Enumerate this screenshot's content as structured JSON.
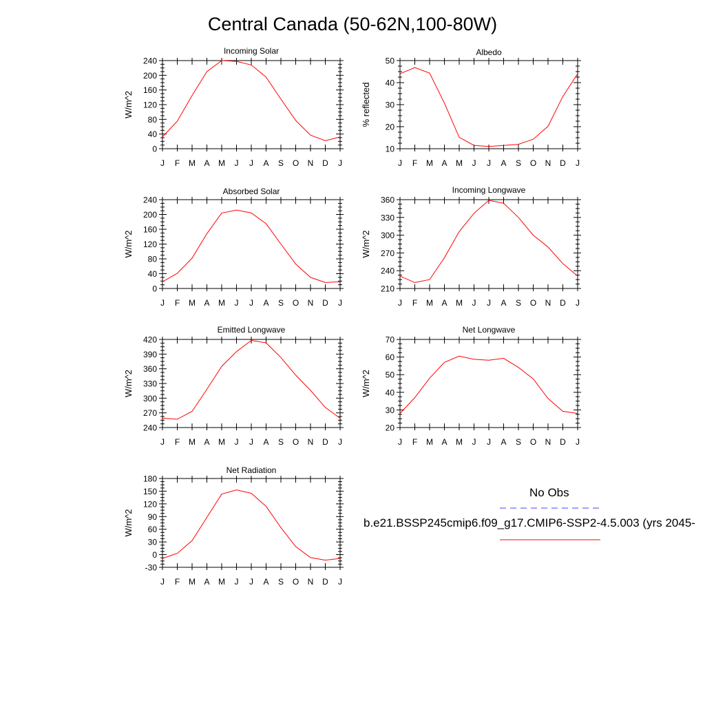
{
  "page": {
    "title": "Central Canada (50-62N,100-80W)"
  },
  "legend": {
    "obs_label": "No Obs",
    "case_label": "b.e21.BSSP245cmip6.f09_g17.CMIP6-SSP2-4.5.003 (yrs 2045-",
    "obs_color": "#4040ff",
    "case_color": "#ff0000"
  },
  "colors": {
    "line": "#ff0000",
    "axis": "#000000"
  },
  "chart_data": [
    {
      "type": "line",
      "title": "Incoming Solar",
      "ylabel": "W/m^2",
      "categories": [
        "J",
        "F",
        "M",
        "A",
        "M",
        "J",
        "J",
        "A",
        "S",
        "O",
        "N",
        "D",
        "J"
      ],
      "ylim": [
        0,
        240
      ],
      "yticks": [
        0,
        40,
        80,
        120,
        160,
        200,
        240
      ],
      "values": [
        32,
        75,
        145,
        210,
        240,
        238,
        228,
        195,
        135,
        77,
        37,
        22,
        32
      ]
    },
    {
      "type": "line",
      "title": "Albedo",
      "ylabel": "% reflected",
      "categories": [
        "J",
        "F",
        "M",
        "A",
        "M",
        "J",
        "J",
        "A",
        "S",
        "O",
        "N",
        "D",
        "J"
      ],
      "ylim": [
        10,
        50
      ],
      "yticks": [
        10,
        20,
        30,
        40,
        50
      ],
      "values": [
        44,
        46.8,
        44.3,
        30.7,
        15.2,
        11.5,
        11.0,
        11.5,
        12.0,
        14.3,
        20.2,
        33.7,
        44
      ]
    },
    {
      "type": "line",
      "title": "Absorbed Solar",
      "ylabel": "W/m^2",
      "categories": [
        "J",
        "F",
        "M",
        "A",
        "M",
        "J",
        "J",
        "A",
        "S",
        "O",
        "N",
        "D",
        "J"
      ],
      "ylim": [
        0,
        240
      ],
      "yticks": [
        0,
        40,
        80,
        120,
        160,
        200,
        240
      ],
      "values": [
        18,
        41,
        82,
        148,
        204,
        212,
        204,
        175,
        120,
        66,
        30,
        16,
        18
      ]
    },
    {
      "type": "line",
      "title": "Incoming Longwave",
      "ylabel": "W/m^2",
      "categories": [
        "J",
        "F",
        "M",
        "A",
        "M",
        "J",
        "J",
        "A",
        "S",
        "O",
        "N",
        "D",
        "J"
      ],
      "ylim": [
        210,
        360
      ],
      "yticks": [
        210,
        240,
        270,
        300,
        330,
        360
      ],
      "values": [
        231,
        220,
        225,
        262,
        306,
        337,
        359,
        354,
        330,
        300,
        280,
        252,
        231
      ]
    },
    {
      "type": "line",
      "title": "Emitted Longwave",
      "ylabel": "W/m^2",
      "categories": [
        "J",
        "F",
        "M",
        "A",
        "M",
        "J",
        "J",
        "A",
        "S",
        "O",
        "N",
        "D",
        "J"
      ],
      "ylim": [
        240,
        420
      ],
      "yticks": [
        240,
        270,
        300,
        330,
        360,
        390,
        420
      ],
      "values": [
        259,
        257,
        273,
        318,
        365,
        395,
        418,
        413,
        383,
        347,
        316,
        281,
        259
      ]
    },
    {
      "type": "line",
      "title": "Net Longwave",
      "ylabel": "W/m^2",
      "categories": [
        "J",
        "F",
        "M",
        "A",
        "M",
        "J",
        "J",
        "A",
        "S",
        "O",
        "N",
        "D",
        "J"
      ],
      "ylim": [
        20,
        70
      ],
      "yticks": [
        20,
        30,
        40,
        50,
        60,
        70
      ],
      "values": [
        28,
        37,
        48,
        57,
        60.5,
        58.7,
        58.2,
        59.3,
        54.1,
        47.6,
        36.5,
        29.2,
        28
      ]
    },
    {
      "type": "line",
      "title": "Net Radiation",
      "ylabel": "W/m^2",
      "categories": [
        "J",
        "F",
        "M",
        "A",
        "M",
        "J",
        "J",
        "A",
        "S",
        "O",
        "N",
        "D",
        "J"
      ],
      "ylim": [
        -30,
        180
      ],
      "yticks": [
        -30,
        0,
        30,
        60,
        90,
        120,
        150,
        180
      ],
      "values": [
        -9,
        3,
        33,
        88,
        143,
        153,
        145,
        114,
        64,
        19,
        -7,
        -13,
        -9
      ]
    }
  ]
}
